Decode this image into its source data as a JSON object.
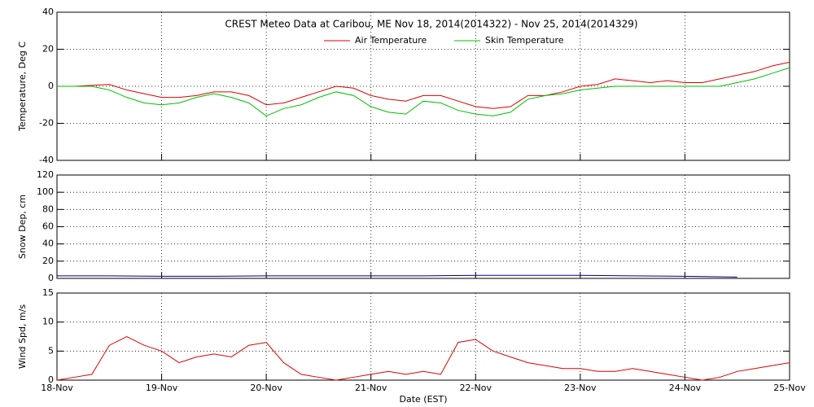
{
  "chart_data": [
    {
      "type": "line",
      "title": "CREST Meteo Data at Caribou, ME   Nov 18, 2014(2014322) - Nov 25, 2014(2014329)",
      "ylabel": "Temperature, Deg C",
      "xlim": [
        0,
        168
      ],
      "xticks": [
        0,
        24,
        48,
        72,
        96,
        120,
        144,
        168
      ],
      "ylim": [
        -40,
        40
      ],
      "yticks": [
        -40,
        -20,
        0,
        20,
        40
      ],
      "grid": true,
      "legend": "top",
      "x": [
        0,
        4,
        8,
        12,
        16,
        20,
        24,
        28,
        32,
        36,
        40,
        44,
        48,
        52,
        56,
        60,
        64,
        68,
        72,
        76,
        80,
        84,
        88,
        92,
        96,
        100,
        104,
        108,
        112,
        116,
        120,
        124,
        128,
        132,
        136,
        140,
        144,
        148,
        152,
        156,
        160,
        164,
        168
      ],
      "series": [
        {
          "name": "Air Temperature",
          "color": "#e00000",
          "values": [
            0,
            0,
            0.5,
            1,
            -2,
            -4,
            -6,
            -6,
            -5,
            -3,
            -3,
            -5,
            -10,
            -9,
            -6,
            -3,
            0,
            -1,
            -5,
            -7,
            -8,
            -5,
            -5,
            -8,
            -11,
            -12,
            -11,
            -5,
            -5,
            -3,
            0,
            1,
            4,
            3,
            2,
            3,
            2,
            2,
            4,
            6,
            8,
            11,
            13
          ]
        },
        {
          "name": "Skin Temperature",
          "color": "#00c000",
          "values": [
            0,
            0,
            0,
            -2,
            -6,
            -9,
            -10,
            -9,
            -6,
            -4,
            -6,
            -9,
            -16,
            -12,
            -10,
            -6,
            -3,
            -5,
            -11,
            -14,
            -15,
            -8,
            -9,
            -13,
            -15,
            -16,
            -14,
            -7,
            -5,
            -4,
            -2,
            -1,
            0,
            0,
            0,
            0,
            0,
            0,
            0,
            2,
            4,
            7,
            10
          ]
        }
      ]
    },
    {
      "type": "line",
      "ylabel": "Snow Dep, cm",
      "xlim": [
        0,
        168
      ],
      "xticks": [
        0,
        24,
        48,
        72,
        96,
        120,
        144,
        168
      ],
      "ylim": [
        0,
        120
      ],
      "yticks": [
        0,
        20,
        40,
        60,
        80,
        100,
        120
      ],
      "grid": true,
      "x": [
        0,
        12,
        24,
        36,
        48,
        60,
        72,
        84,
        96,
        108,
        120,
        132,
        144,
        156
      ],
      "series": [
        {
          "color": "#000080",
          "values": [
            3,
            3,
            2.5,
            2.5,
            3,
            3,
            3,
            3,
            3.5,
            3.5,
            3.5,
            3,
            2.5,
            1.5
          ]
        }
      ]
    },
    {
      "type": "line",
      "ylabel": "Wind Spd, m/s",
      "xlabel": "Date (EST)",
      "xlim": [
        0,
        168
      ],
      "xticks": [
        {
          "value": 0,
          "label": "18-Nov"
        },
        {
          "value": 24,
          "label": "19-Nov"
        },
        {
          "value": 48,
          "label": "20-Nov"
        },
        {
          "value": 72,
          "label": "21-Nov"
        },
        {
          "value": 96,
          "label": "22-Nov"
        },
        {
          "value": 120,
          "label": "23-Nov"
        },
        {
          "value": 144,
          "label": "24-Nov"
        },
        {
          "value": 168,
          "label": "25-Nov"
        }
      ],
      "ylim": [
        0,
        15
      ],
      "yticks": [
        0,
        5,
        10,
        15
      ],
      "grid": true,
      "x": [
        0,
        4,
        8,
        12,
        16,
        20,
        24,
        28,
        32,
        36,
        40,
        44,
        48,
        52,
        56,
        60,
        64,
        68,
        72,
        76,
        80,
        84,
        88,
        92,
        96,
        100,
        104,
        108,
        112,
        116,
        120,
        124,
        128,
        132,
        136,
        140,
        144,
        148,
        152,
        156,
        160,
        164,
        168
      ],
      "series": [
        {
          "color": "#e00000",
          "values": [
            0,
            0.5,
            1,
            6,
            7.5,
            6,
            5,
            3,
            4,
            4.5,
            4,
            6,
            6.5,
            3,
            1,
            0.5,
            0,
            0.5,
            1,
            1.5,
            1,
            1.5,
            1,
            6.5,
            7,
            5,
            4,
            3,
            2.5,
            2,
            2,
            1.5,
            1.5,
            2,
            1.5,
            1,
            0.5,
            0,
            0.5,
            1.5,
            2,
            2.5,
            3
          ]
        }
      ]
    }
  ]
}
